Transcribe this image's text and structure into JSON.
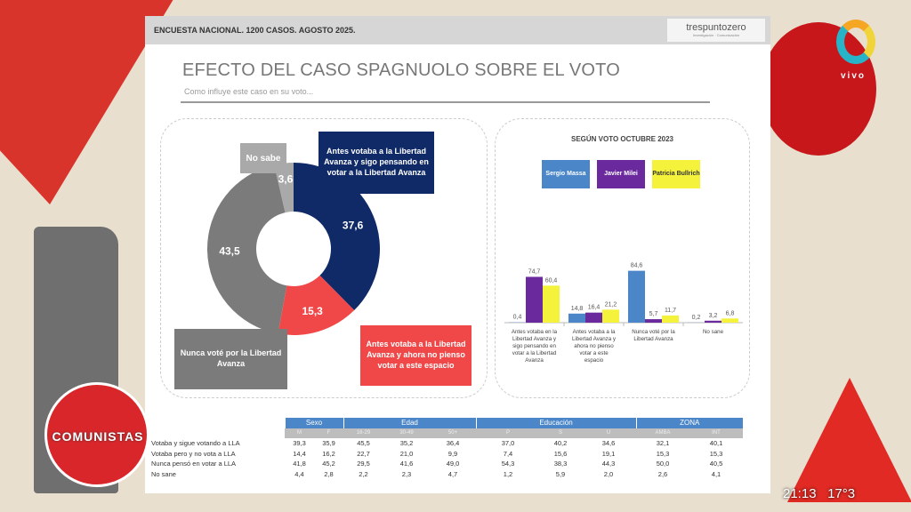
{
  "header": {
    "survey": "ENCUESTA NACIONAL. 1200 CASOS. AGOSTO 2025.",
    "logo": "trespuntozero",
    "logo_tagline": "Investigación · Comunicación"
  },
  "title": "EFECTO DEL CASO SPAGNUOLO SOBRE EL VOTO",
  "subtitle": "Como influye este caso en su voto...",
  "chart_data": [
    {
      "type": "pie",
      "variant": "donut",
      "slices": [
        {
          "label": "Antes votaba a la Libertad Avanza y sigo pensando en votar a la Libertad Avanza",
          "value": 37.6,
          "value_label": "37,6",
          "color": "#0f2a66"
        },
        {
          "label": "Antes votaba a la Libertad Avanza y ahora no pienso votar a este espacio",
          "value": 15.3,
          "value_label": "15,3",
          "color": "#f04848"
        },
        {
          "label": "Nunca voté por la Libertad Avanza",
          "value": 43.5,
          "value_label": "43,5",
          "color": "#7b7b7b"
        },
        {
          "label": "No sabe",
          "value": 3.6,
          "value_label": "3,6",
          "color": "#a9a9a9"
        }
      ]
    },
    {
      "type": "bar",
      "title": "SEGÚN VOTO OCTUBRE 2023",
      "legend": "top",
      "categories": [
        "Antes votaba en la Libertad Avanza y sigo pensando en votar a la Libertad Avanza",
        "Antes votaba a la Libertad Avanza y ahora no pienso votar a este espacio",
        "Nunca voté por la Libertad Avanza",
        "No sane"
      ],
      "series": [
        {
          "name": "Sergio Massa",
          "color": "#4a86c8",
          "values": [
            0.4,
            14.8,
            84.6,
            0.2
          ],
          "labels": [
            "0,4",
            "14,8",
            "84,6",
            "0,2"
          ]
        },
        {
          "name": "Javier Milei",
          "color": "#6a2a9e",
          "values": [
            74.7,
            16.4,
            5.7,
            3.2
          ],
          "labels": [
            "74,7",
            "16,4",
            "5,7",
            "3,2"
          ]
        },
        {
          "name": "Patricia Bullrich",
          "color": "#f4f23a",
          "values": [
            60.4,
            21.2,
            11.7,
            6.8
          ],
          "labels": [
            "60,4",
            "21,2",
            "11,7",
            "6,8"
          ]
        }
      ],
      "ylim": [
        0,
        90
      ]
    },
    {
      "type": "table",
      "groups": [
        {
          "name": "Sexo",
          "span": 2
        },
        {
          "name": "Edad",
          "span": 3
        },
        {
          "name": "Educación",
          "span": 3
        },
        {
          "name": "ZONA",
          "span": 2
        }
      ],
      "columns": [
        "M",
        "F",
        "16-29",
        "30-49",
        "50+",
        "P",
        "S",
        "U",
        "AMBA",
        "INT"
      ],
      "rows": [
        {
          "label": "Votaba y sigue votando a LLA",
          "values": [
            "39,3",
            "35,9",
            "45,5",
            "35,2",
            "36,4",
            "37,0",
            "40,2",
            "34,6",
            "32,1",
            "40,1"
          ]
        },
        {
          "label": "Votaba pero y no vota a LLA",
          "values": [
            "14,4",
            "16,2",
            "22,7",
            "21,0",
            "9,9",
            "7,4",
            "15,6",
            "19,1",
            "15,3",
            "15,3"
          ]
        },
        {
          "label": "Nunca pensó en votar a LLA",
          "values": [
            "41,8",
            "45,2",
            "29,5",
            "41,6",
            "49,0",
            "54,3",
            "38,3",
            "44,3",
            "50,0",
            "40,5"
          ]
        },
        {
          "label": "No sane",
          "values": [
            "4,4",
            "2,8",
            "2,2",
            "2,3",
            "4,7",
            "1,2",
            "5,9",
            "2,0",
            "2,6",
            "4,1"
          ]
        }
      ]
    }
  ],
  "overlay": {
    "clock": "21:13",
    "temperature": "17°3",
    "channel": "vivo",
    "show": "COMUNISTAS"
  }
}
